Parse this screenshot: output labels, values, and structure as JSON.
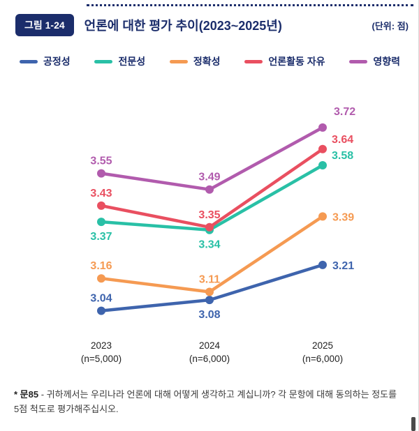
{
  "header": {
    "figure_label": "그림 1-24",
    "title": "언론에 대한 평가 추이(2023~2025년)",
    "unit": "(단위: 점)"
  },
  "footnote": {
    "prefix": "* 문85",
    "body": " - 귀하께서는 우리나라 언론에 대해 어떻게 생각하고 계십니까? 각 문항에 대해 동의하는 정도를 5점 척도로 평가해주십시오."
  },
  "colors": {
    "navy": "#1b2d6b",
    "axis_text": "#222222"
  },
  "chart_data": {
    "type": "line",
    "title": "언론에 대한 평가 추이(2023~2025년)",
    "unit": "점",
    "categories": [
      "2023",
      "2024",
      "2025"
    ],
    "category_sublabels": [
      "(n=5,000)",
      "(n=6,000)",
      "(n=6,000)"
    ],
    "ylim": [
      3.0,
      3.8
    ],
    "grid": false,
    "legend_position": "top",
    "series": [
      {
        "name": "공정성",
        "color": "#3e64ad",
        "values": [
          3.04,
          3.08,
          3.21
        ],
        "label_pos": [
          "above",
          "below",
          "right"
        ]
      },
      {
        "name": "전문성",
        "color": "#29c0a6",
        "values": [
          3.37,
          3.34,
          3.58
        ],
        "label_pos": [
          "below",
          "below",
          "right-up"
        ]
      },
      {
        "name": "정확성",
        "color": "#f59a52",
        "values": [
          3.16,
          3.11,
          3.39
        ],
        "label_pos": [
          "above",
          "above",
          "right"
        ]
      },
      {
        "name": "언론활동 자유",
        "color": "#e94f60",
        "values": [
          3.43,
          3.35,
          3.64
        ],
        "label_pos": [
          "above",
          "above",
          "right-up"
        ]
      },
      {
        "name": "영향력",
        "color": "#b15bad",
        "values": [
          3.55,
          3.49,
          3.72
        ],
        "label_pos": [
          "above",
          "above",
          "above-right"
        ]
      }
    ]
  }
}
